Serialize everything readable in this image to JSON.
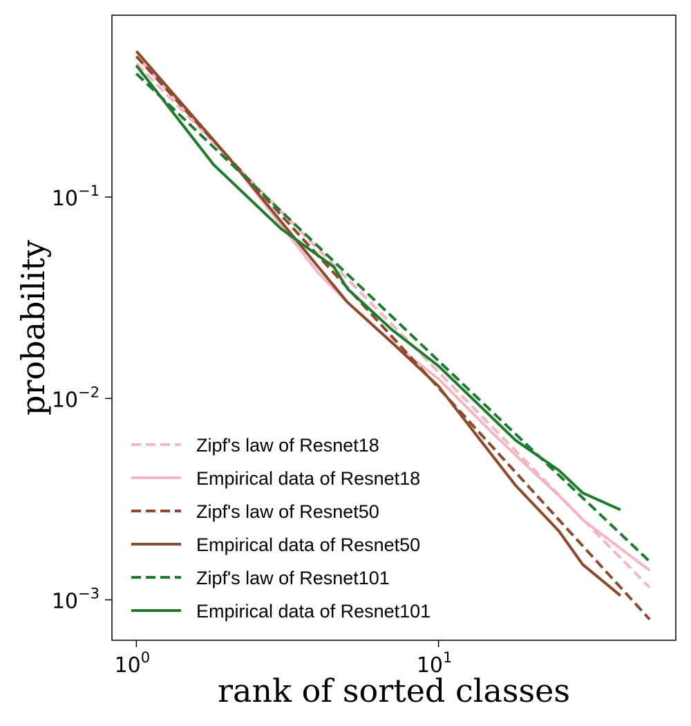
{
  "chart_data": {
    "type": "line",
    "xlabel": "rank of sorted classes",
    "ylabel": "probability",
    "xscale": "log",
    "yscale": "log",
    "xlim": [
      0.83,
      61
    ],
    "ylim": [
      0.00063,
      0.8
    ],
    "grid": false,
    "legend_position": "lower-left",
    "x_ticks": [
      {
        "value": 1,
        "base": "10",
        "exp": "0"
      },
      {
        "value": 10,
        "base": "10",
        "exp": "1"
      }
    ],
    "y_ticks": [
      {
        "value": 0.1,
        "base": "10",
        "exp": "−1"
      },
      {
        "value": 0.01,
        "base": "10",
        "exp": "−2"
      },
      {
        "value": 0.001,
        "base": "10",
        "exp": "−3"
      }
    ],
    "series": [
      {
        "name": "Zipf's law of Resnet18",
        "color": "#f4b6c2",
        "style": "dashed",
        "x": [
          1,
          50
        ],
        "y": [
          0.46,
          0.00115
        ]
      },
      {
        "name": "Empirical data of Resnet18",
        "color": "#f4b6c2",
        "style": "solid",
        "x": [
          1,
          2,
          4,
          5,
          7,
          10,
          15,
          20,
          25,
          30,
          40,
          50
        ],
        "y": [
          0.5,
          0.16,
          0.042,
          0.03,
          0.019,
          0.0125,
          0.0068,
          0.0045,
          0.0033,
          0.0025,
          0.0018,
          0.0014
        ]
      },
      {
        "name": "Zipf's law of Resnet50",
        "color": "#8b4a2b",
        "style": "dashed",
        "x": [
          1,
          50
        ],
        "y": [
          0.5,
          0.0008
        ]
      },
      {
        "name": "Empirical data of Resnet50",
        "color": "#8b4a2b",
        "style": "solid",
        "x": [
          1,
          2,
          4,
          5,
          7,
          10,
          14,
          18,
          25,
          30,
          40
        ],
        "y": [
          0.53,
          0.16,
          0.045,
          0.03,
          0.019,
          0.0115,
          0.006,
          0.0037,
          0.0022,
          0.0015,
          0.00105
        ]
      },
      {
        "name": "Zipf's law of Resnet101",
        "color": "#1e7b2e",
        "style": "dashed",
        "x": [
          1,
          50
        ],
        "y": [
          0.41,
          0.00155
        ]
      },
      {
        "name": "Empirical data of Resnet101",
        "color": "#1e7b2e",
        "style": "solid",
        "x": [
          1,
          1.8,
          3,
          4.5,
          5,
          7,
          10,
          18,
          25,
          30,
          40
        ],
        "y": [
          0.45,
          0.145,
          0.07,
          0.045,
          0.035,
          0.022,
          0.0145,
          0.0062,
          0.0044,
          0.0034,
          0.0028
        ]
      }
    ]
  }
}
